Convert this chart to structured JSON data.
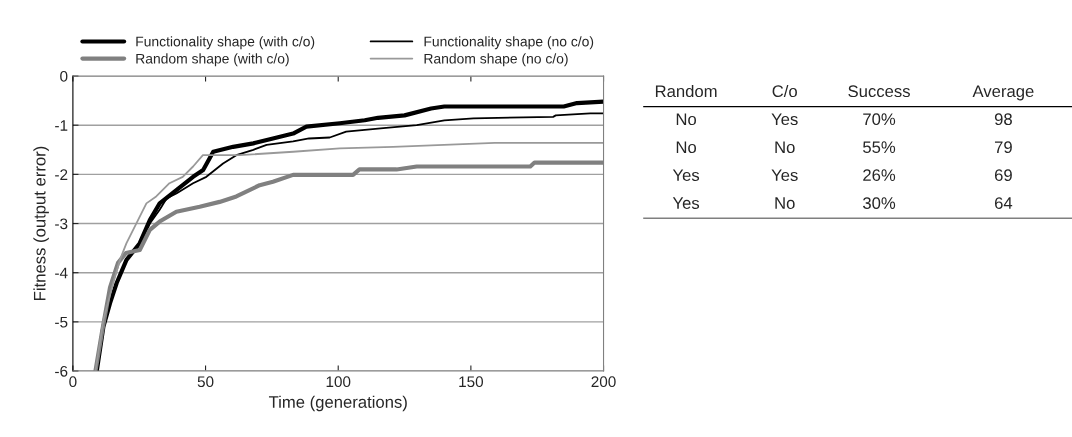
{
  "chart_data": [
    {
      "type": "line",
      "xlabel": "Time (generations)",
      "ylabel": "Fitness (output error)",
      "xlim": [
        0,
        200
      ],
      "ylim": [
        -6,
        0
      ],
      "xticks": [
        0,
        50,
        100,
        150,
        200
      ],
      "yticks": [
        -6,
        -5,
        -4,
        -3,
        -2,
        -1,
        0
      ],
      "grid": "y",
      "legend": "top",
      "series": [
        {
          "name": "Functionality shape (with c/o)",
          "color": "#000000",
          "x": [
            9,
            11.5,
            14,
            16.5,
            20.2,
            25.2,
            29,
            32.7,
            39,
            45.3,
            49.1,
            52.9,
            60.4,
            68,
            75.4,
            83,
            88,
            100.6,
            110,
            115,
            125,
            135,
            140,
            185,
            190,
            200
          ],
          "values": [
            -6,
            -5.1,
            -4.62,
            -4.21,
            -3.74,
            -3.4,
            -2.93,
            -2.59,
            -2.32,
            -2.05,
            -1.91,
            -1.54,
            -1.44,
            -1.37,
            -1.27,
            -1.17,
            -1.03,
            -0.96,
            -0.9,
            -0.85,
            -0.8,
            -0.66,
            -0.62,
            -0.62,
            -0.55,
            -0.52
          ]
        },
        {
          "name": "Functionality shape (no c/o)",
          "color": "#000000",
          "x": [
            9,
            11.5,
            14,
            16.5,
            20.2,
            25.2,
            29,
            32.7,
            35.3,
            39,
            45.3,
            50.3,
            56.6,
            61.6,
            68,
            73,
            83,
            89,
            96.8,
            103,
            117,
            129.6,
            140,
            151,
            181,
            182,
            195,
            200
          ],
          "values": [
            -6,
            -5.1,
            -4.62,
            -4.21,
            -3.74,
            -3.4,
            -3.0,
            -2.72,
            -2.49,
            -2.39,
            -2.18,
            -2.05,
            -1.78,
            -1.61,
            -1.5,
            -1.4,
            -1.33,
            -1.27,
            -1.25,
            -1.13,
            -1.06,
            -1.0,
            -0.9,
            -0.86,
            -0.83,
            -0.8,
            -0.76,
            -0.76
          ]
        },
        {
          "name": "Random shape (with c/o)",
          "color": "#808080",
          "x": [
            8.5,
            11,
            14,
            17,
            20,
            25.2,
            29,
            32.7,
            39,
            47.8,
            55.3,
            61.6,
            70.4,
            75.4,
            83,
            100.6,
            105.6,
            108,
            122,
            129.6,
            172.4,
            174,
            200
          ],
          "values": [
            -6,
            -5.2,
            -4.3,
            -3.8,
            -3.6,
            -3.54,
            -3.13,
            -2.96,
            -2.76,
            -2.66,
            -2.56,
            -2.45,
            -2.22,
            -2.15,
            -2.01,
            -2.01,
            -2.01,
            -1.9,
            -1.9,
            -1.84,
            -1.84,
            -1.76,
            -1.76
          ]
        },
        {
          "name": "Random shape (no c/o)",
          "color": "#999999",
          "x": [
            8.5,
            11.5,
            15.2,
            17.7,
            20.2,
            25.2,
            27.7,
            31.4,
            36.4,
            41.4,
            45.3,
            49,
            62.9,
            83,
            100.6,
            120.7,
            159,
            200
          ],
          "values": [
            -6,
            -4.96,
            -4.21,
            -3.74,
            -3.4,
            -2.86,
            -2.59,
            -2.45,
            -2.18,
            -2.05,
            -1.84,
            -1.61,
            -1.61,
            -1.54,
            -1.47,
            -1.44,
            -1.36,
            -1.36
          ]
        }
      ]
    },
    {
      "type": "other",
      "categories": [
        "Random",
        "C/o",
        "Success",
        "Average"
      ],
      "annotations": [
        "No",
        "Yes",
        "70%",
        "98",
        "No",
        "No",
        "55%",
        "79",
        "Yes",
        "Yes",
        "26%",
        "69",
        "Yes",
        "No",
        "30%",
        "64"
      ]
    }
  ]
}
